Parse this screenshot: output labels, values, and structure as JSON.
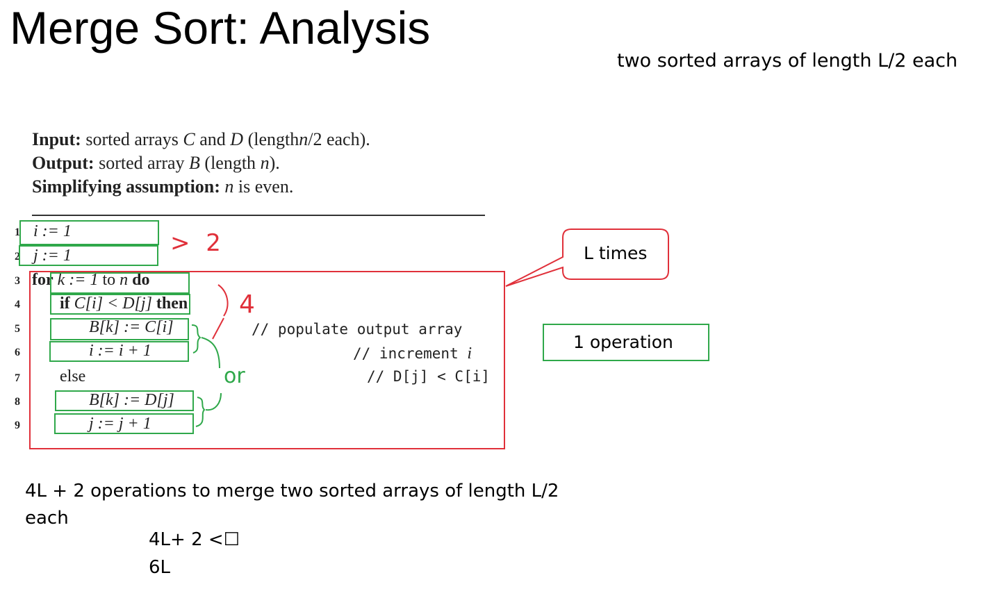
{
  "slide": {
    "title": "Merge Sort: Analysis",
    "top_note": "two sorted arrays of length L/2 each"
  },
  "spec": {
    "input_label": "Input:",
    "input_text_1": "sorted arrays",
    "input_var_c": "C",
    "input_text_2": "and",
    "input_var_d": "D",
    "input_text_3": "(length",
    "input_var_n": "n",
    "input_text_4": "/2 each).",
    "output_label": "Output:",
    "output_text_1": "sorted array",
    "output_var_b": "B",
    "output_text_2": "(length",
    "output_var_n": "n",
    "output_text_3": ").",
    "assumption_label": "Simplifying assumption:",
    "assumption_var": "n",
    "assumption_text": "is even."
  },
  "pseudocode": {
    "line_numbers": [
      "1",
      "2",
      "3",
      "4",
      "5",
      "6",
      "7",
      "8",
      "9"
    ],
    "line1": "i := 1",
    "line2": "j := 1",
    "line3_kw1": "for",
    "line3_mid": "k := 1",
    "line3_to": "to",
    "line3_n": "n",
    "line3_kw2": "do",
    "line4_kw1": "if",
    "line4_cond": "C[i] < D[j]",
    "line4_kw2": "then",
    "line5": "B[k] := C[i]",
    "line6": "i := i + 1",
    "line7": "else",
    "line8": "B[k] := D[j]",
    "line9": "j := j + 1",
    "comment5": "// populate output array",
    "comment6_text": "// increment",
    "comment6_var": "i",
    "comment7": "// D[j] < C[i]"
  },
  "annotations": {
    "gt_two": "> 2",
    "four": "4",
    "or_text": "or",
    "l_times": "L times",
    "one_operation": "1 operation"
  },
  "summary": {
    "line1": "4L + 2 operations to merge two sorted arrays of length L/2",
    "line2": "each",
    "ineq1": "4L+ 2 <☐",
    "ineq2": "6L"
  },
  "colors": {
    "red_box": "#e0303a",
    "green_box": "#2fa84a",
    "rule": "#333333"
  }
}
